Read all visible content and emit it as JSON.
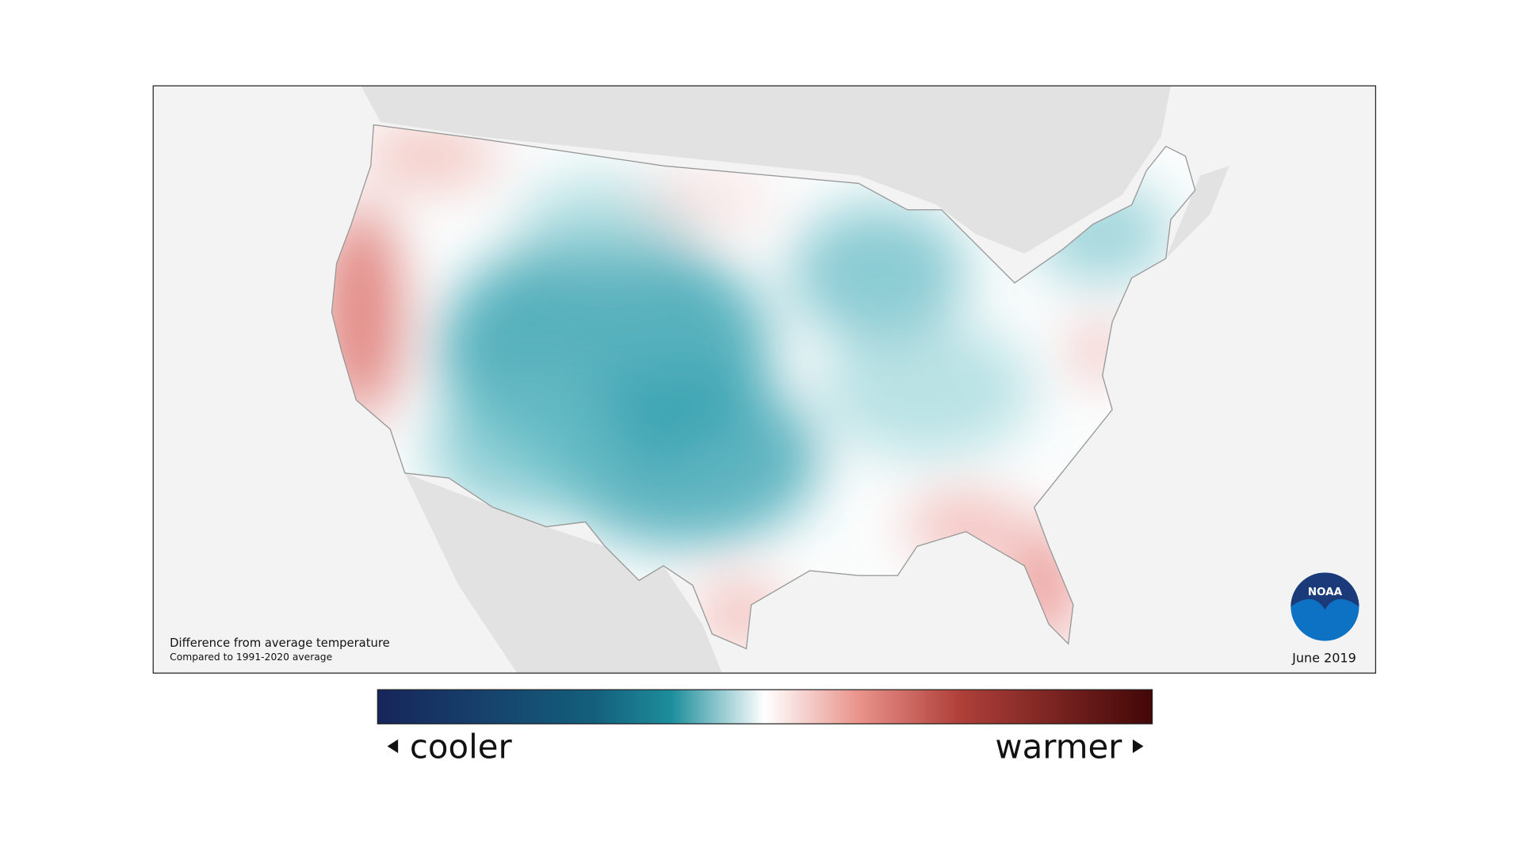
{
  "map": {
    "legend_title": "Difference from average temperature",
    "legend_subtitle": "Compared to 1991-2020 average",
    "date": "June 2019",
    "logo": "NOAA"
  },
  "colorbar": {
    "low_label": "cooler",
    "high_label": "warmer"
  }
}
